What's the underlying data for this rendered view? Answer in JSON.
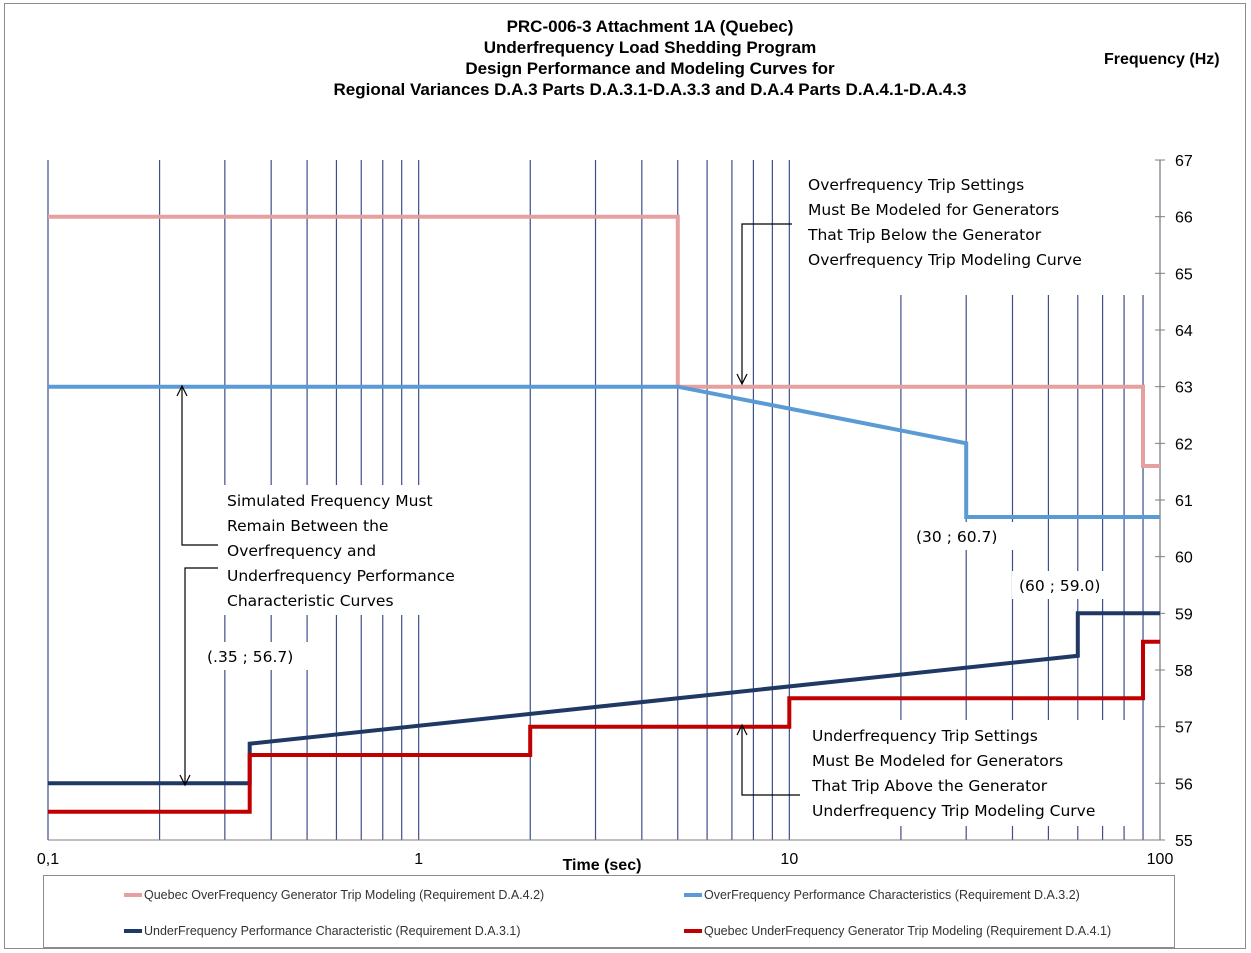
{
  "title_lines": [
    "PRC-006-3 Attachment 1A  (Quebec)",
    "Underfrequency Load Shedding  Program",
    "Design Performance  and Modeling Curves for",
    "Regional Variances D.A.3  Parts D.A.3.1-D.A.3.3 and D.A.4  Parts D.A.4.1-D.A.4.3"
  ],
  "y_axis_title": "Frequency (Hz)",
  "annotations": {
    "overfreq_trip": [
      "Overfrequency Trip Settings",
      "Must Be Modeled for Generators",
      "That Trip Below the Generator",
      "Overfrequency Trip Modeling Curve"
    ],
    "simulated": [
      "Simulated Frequency Must",
      "Remain Between the",
      "Overfrequency and",
      "Underfrequency Performance",
      "Characteristic Curves"
    ],
    "underfreq_trip": [
      "Underfrequency Trip Settings",
      "Must Be Modeled for Generators",
      "That Trip Above the Generator",
      "Underfrequency Trip Modeling Curve"
    ],
    "point_30": "(30 ; 60.7)",
    "point_60": "(60 ; 59.0)",
    "point_035": "(.35 ; 56.7)"
  },
  "chart_data": {
    "type": "line",
    "xlabel": "Time (sec)",
    "ylabel": "Frequency (Hz)",
    "x_scale": "log",
    "xlim": [
      0.1,
      100
    ],
    "ylim": [
      55,
      67
    ],
    "x_tick_labels": [
      "0,1",
      "1",
      "10",
      "100"
    ],
    "x_ticks": [
      0.1,
      1,
      10,
      100
    ],
    "y_ticks": [
      55,
      56,
      57,
      58,
      59,
      60,
      61,
      62,
      63,
      64,
      65,
      66,
      67
    ],
    "grid": "vertical",
    "legend_position": "bottom",
    "series": [
      {
        "name": "Quebec OverFrequency Generator Trip Modeling (Requirement D.A.4.2)",
        "color": "#e6a09f",
        "points": [
          [
            0.1,
            66
          ],
          [
            5,
            66
          ],
          [
            5,
            63
          ],
          [
            90,
            63
          ],
          [
            90,
            61.6
          ],
          [
            100,
            61.6
          ]
        ]
      },
      {
        "name": "OverFrequency Performance Characteristics (Requirement D.A.3.2)",
        "color": "#5b9bd5",
        "points": [
          [
            0.1,
            63
          ],
          [
            5,
            63
          ],
          [
            30,
            62
          ],
          [
            30,
            60.7
          ],
          [
            100,
            60.7
          ]
        ]
      },
      {
        "name": "UnderFrequency Performance Characteristic (Requirement D.A.3.1)",
        "color": "#1f3864",
        "points": [
          [
            0.1,
            56
          ],
          [
            0.35,
            56
          ],
          [
            0.35,
            56.7
          ],
          [
            60,
            58.25
          ],
          [
            60,
            59
          ],
          [
            100,
            59
          ]
        ]
      },
      {
        "name": "Quebec UnderFrequency Generator Trip Modeling (Requirement D.A.4.1)",
        "color": "#c00000",
        "points": [
          [
            0.1,
            55.5
          ],
          [
            0.35,
            55.5
          ],
          [
            0.35,
            56.5
          ],
          [
            2,
            56.5
          ],
          [
            2,
            57
          ],
          [
            10,
            57
          ],
          [
            10,
            57.5
          ],
          [
            90,
            57.5
          ],
          [
            90,
            58.5
          ],
          [
            100,
            58.5
          ]
        ]
      }
    ]
  }
}
